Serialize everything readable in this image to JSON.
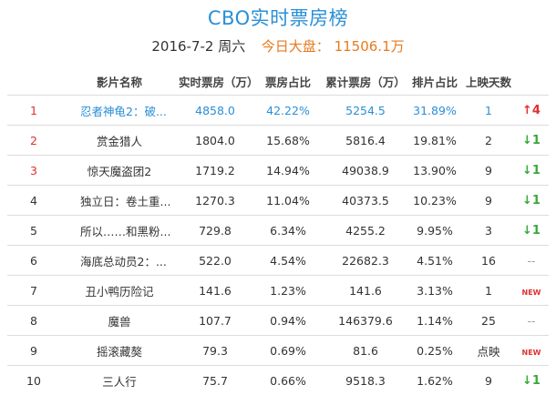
{
  "header": {
    "title": "CBO实时票房榜",
    "date": "2016-7-2 周六",
    "market_label": "今日大盘：",
    "market_value": "11506.1万"
  },
  "columns": [
    "影片名称",
    "实时票房（万）",
    "票房占比",
    "累计票房（万）",
    "排片占比",
    "上映天数"
  ],
  "rows": [
    {
      "rank": "1",
      "name": "忍者神龟2：破...",
      "box": "4858.0",
      "share": "42.22%",
      "total": "5254.5",
      "screen": "31.89%",
      "days": "1",
      "trend": "↑4",
      "trend_type": "up"
    },
    {
      "rank": "2",
      "name": "赏金猎人",
      "box": "1804.0",
      "share": "15.68%",
      "total": "5816.4",
      "screen": "19.81%",
      "days": "2",
      "trend": "↓1",
      "trend_type": "down"
    },
    {
      "rank": "3",
      "name": "惊天魔盗团2",
      "box": "1719.2",
      "share": "14.94%",
      "total": "49038.9",
      "screen": "13.90%",
      "days": "9",
      "trend": "↓1",
      "trend_type": "down"
    },
    {
      "rank": "4",
      "name": "独立日：卷土重...",
      "box": "1270.3",
      "share": "11.04%",
      "total": "40373.5",
      "screen": "10.23%",
      "days": "9",
      "trend": "↓1",
      "trend_type": "down"
    },
    {
      "rank": "5",
      "name": "所以……和黑粉...",
      "box": "729.8",
      "share": "6.34%",
      "total": "4255.2",
      "screen": "9.95%",
      "days": "3",
      "trend": "↓1",
      "trend_type": "down"
    },
    {
      "rank": "6",
      "name": "海底总动员2：...",
      "box": "522.0",
      "share": "4.54%",
      "total": "22682.3",
      "screen": "4.51%",
      "days": "16",
      "trend": "--",
      "trend_type": "flat"
    },
    {
      "rank": "7",
      "name": "丑小鸭历险记",
      "box": "141.6",
      "share": "1.23%",
      "total": "141.6",
      "screen": "3.13%",
      "days": "1",
      "trend": "NEW",
      "trend_type": "new"
    },
    {
      "rank": "8",
      "name": "魔兽",
      "box": "107.7",
      "share": "0.94%",
      "total": "146379.6",
      "screen": "1.14%",
      "days": "25",
      "trend": "--",
      "trend_type": "flat"
    },
    {
      "rank": "9",
      "name": "摇滚藏獒",
      "box": "79.3",
      "share": "0.69%",
      "total": "81.6",
      "screen": "0.25%",
      "days": "点映",
      "trend": "NEW",
      "trend_type": "new"
    },
    {
      "rank": "10",
      "name": "三人行",
      "box": "75.7",
      "share": "0.66%",
      "total": "9518.3",
      "screen": "1.62%",
      "days": "9",
      "trend": "↓1",
      "trend_type": "down"
    }
  ],
  "colors": {
    "title": "#2a8fd6",
    "highlight_row": "#2a8fd6",
    "rank_red": "#e0312f",
    "market": "#e87a1d",
    "trend_up": "#e0312f",
    "trend_down": "#3aa83a"
  }
}
